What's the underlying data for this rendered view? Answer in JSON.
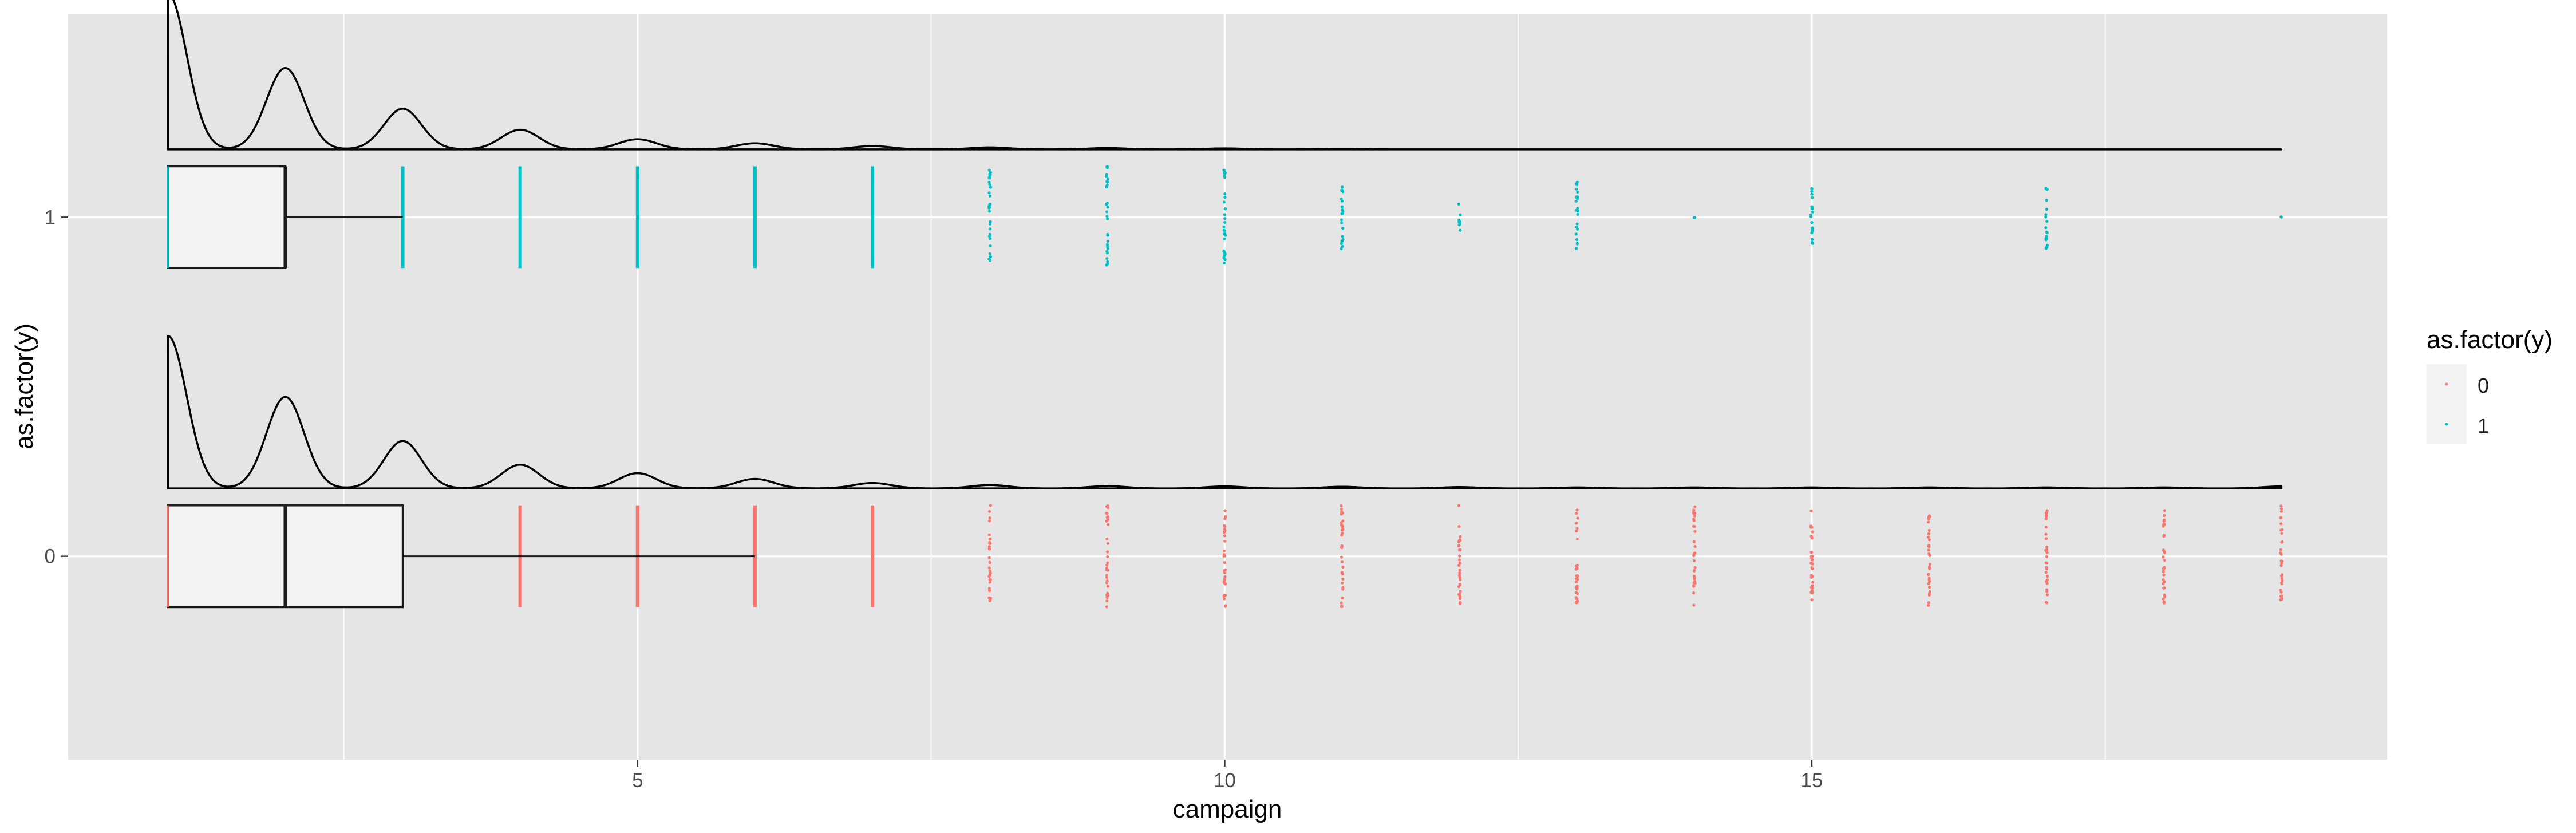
{
  "chart_data": {
    "type": "raincloud",
    "xlabel": "campaign",
    "ylabel": "as.factor(y)",
    "xlim": [
      0.15,
      19.9
    ],
    "x_ticks": [
      5,
      10,
      15
    ],
    "y_categories": [
      "0",
      "1"
    ],
    "grid": true,
    "legend_position": "right",
    "legend": {
      "title": "as.factor(y)",
      "entries": [
        {
          "label": "0",
          "color": "#F8766D"
        },
        {
          "label": "1",
          "color": "#00BFC4"
        }
      ]
    },
    "colors": {
      "panel_bg": "#E5E5E5",
      "grid": "#FFFFFF",
      "series_0": "#F8766D",
      "series_1": "#00BFC4",
      "box_fill": "#F2F2F2",
      "outline": "#1A1A1A"
    },
    "series": [
      {
        "name": "0",
        "box": {
          "min": 1,
          "q1": 1,
          "median": 2,
          "q3": 3,
          "whisker_high": 6
        },
        "points": [
          {
            "x": 4,
            "spread": 0.8
          },
          {
            "x": 5,
            "spread": 0.8
          },
          {
            "x": 6,
            "spread": 0.8
          },
          {
            "x": 7,
            "spread": 0.8
          },
          {
            "x": 8,
            "spread": 0.8
          },
          {
            "x": 9,
            "spread": 0.8
          },
          {
            "x": 10,
            "spread": 0.8
          },
          {
            "x": 11,
            "spread": 0.8
          },
          {
            "x": 12,
            "spread": 0.8
          },
          {
            "x": 13,
            "spread": 0.8
          },
          {
            "x": 14,
            "spread": 0.78
          },
          {
            "x": 15,
            "spread": 0.78
          },
          {
            "x": 16,
            "spread": 0.78
          },
          {
            "x": 17,
            "spread": 0.76
          },
          {
            "x": 18,
            "spread": 0.74
          },
          {
            "x": 19,
            "spread": 0.8
          }
        ],
        "density_peaks": [
          {
            "x": 1,
            "height": 0.45
          },
          {
            "x": 2,
            "height": 0.27
          },
          {
            "x": 3,
            "height": 0.14
          },
          {
            "x": 4,
            "height": 0.07
          },
          {
            "x": 5,
            "height": 0.045
          },
          {
            "x": 6,
            "height": 0.028
          },
          {
            "x": 7,
            "height": 0.016
          },
          {
            "x": 8,
            "height": 0.01
          },
          {
            "x": 9,
            "height": 0.007
          },
          {
            "x": 10,
            "height": 0.006
          },
          {
            "x": 11,
            "height": 0.005
          },
          {
            "x": 12,
            "height": 0.004
          },
          {
            "x": 13,
            "height": 0.003
          },
          {
            "x": 14,
            "height": 0.003
          },
          {
            "x": 15,
            "height": 0.003
          },
          {
            "x": 16,
            "height": 0.003
          },
          {
            "x": 17,
            "height": 0.003
          },
          {
            "x": 18,
            "height": 0.003
          },
          {
            "x": 19,
            "height": 0.006
          }
        ]
      },
      {
        "name": "1",
        "box": {
          "min": 1,
          "q1": 1,
          "median": 2,
          "q3": 2,
          "whisker_high": 3
        },
        "points": [
          {
            "x": 3,
            "spread": 0.8
          },
          {
            "x": 4,
            "spread": 0.8
          },
          {
            "x": 5,
            "spread": 0.8
          },
          {
            "x": 6,
            "spread": 0.8
          },
          {
            "x": 7,
            "spread": 0.8
          },
          {
            "x": 8,
            "spread": 0.75
          },
          {
            "x": 9,
            "spread": 0.8
          },
          {
            "x": 10,
            "spread": 0.75
          },
          {
            "x": 11,
            "spread": 0.55
          },
          {
            "x": 12,
            "spread": 0.25
          },
          {
            "x": 13,
            "spread": 0.55
          },
          {
            "x": 14,
            "spread": 0.02
          },
          {
            "x": 15,
            "spread": 0.45
          },
          {
            "x": 17,
            "spread": 0.5
          },
          {
            "x": 19,
            "spread": 0.02
          }
        ],
        "density_peaks": [
          {
            "x": 1,
            "height": 0.46
          },
          {
            "x": 2,
            "height": 0.24
          },
          {
            "x": 3,
            "height": 0.12
          },
          {
            "x": 4,
            "height": 0.058
          },
          {
            "x": 5,
            "height": 0.03
          },
          {
            "x": 6,
            "height": 0.018
          },
          {
            "x": 7,
            "height": 0.01
          },
          {
            "x": 8,
            "height": 0.006
          },
          {
            "x": 9,
            "height": 0.004
          },
          {
            "x": 10,
            "height": 0.003
          },
          {
            "x": 11,
            "height": 0.002
          }
        ]
      }
    ]
  }
}
